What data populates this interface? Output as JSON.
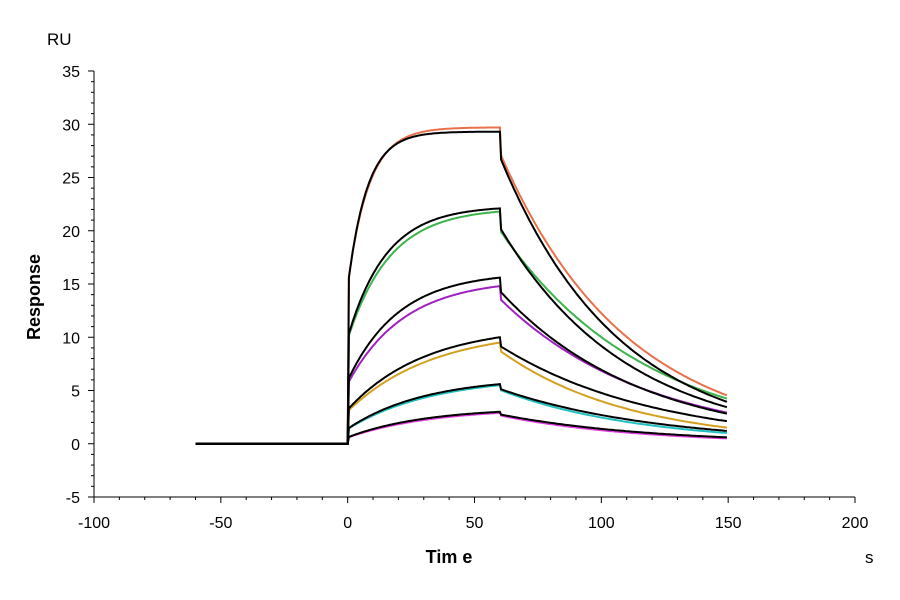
{
  "chart_data": {
    "type": "line",
    "title": "",
    "xlabel": "Tim e",
    "ylabel": "Response",
    "x_unit": "s",
    "y_unit": "RU",
    "xlim": [
      -100,
      200
    ],
    "ylim": [
      -5,
      35
    ],
    "xticks": [
      -100,
      -50,
      0,
      50,
      100,
      150,
      200
    ],
    "yticks": [
      -5,
      0,
      5,
      10,
      15,
      20,
      25,
      30,
      35
    ],
    "grid": false,
    "legend": "none",
    "kinetics": {
      "baseline_start": -60,
      "association_start": 0,
      "dissociation_start": 60,
      "end": 150
    },
    "series": [
      {
        "color": "#e8704a",
        "plateau": 29.7,
        "end_value": 4.5
      },
      {
        "color": "#3cb44b",
        "plateau": 21.8,
        "end_value": 4.2
      },
      {
        "color": "#a020c0",
        "plateau": 14.8,
        "end_value": 2.9
      },
      {
        "color": "#d4a020",
        "plateau": 9.5,
        "end_value": 1.5
      },
      {
        "color": "#20c0c0",
        "plateau": 5.5,
        "end_value": 1.0
      },
      {
        "color": "#e040e0",
        "plateau": 2.9,
        "end_value": 0.5
      }
    ],
    "fits": [
      {
        "color": "#000000",
        "plateau": 29.3,
        "end_value": 3.9
      },
      {
        "color": "#000000",
        "plateau": 22.1,
        "end_value": 3.4
      },
      {
        "color": "#000000",
        "plateau": 15.6,
        "end_value": 2.8
      },
      {
        "color": "#000000",
        "plateau": 10.0,
        "end_value": 2.1
      },
      {
        "color": "#000000",
        "plateau": 5.6,
        "end_value": 1.2
      },
      {
        "color": "#000000",
        "plateau": 3.0,
        "end_value": 0.6
      }
    ]
  }
}
